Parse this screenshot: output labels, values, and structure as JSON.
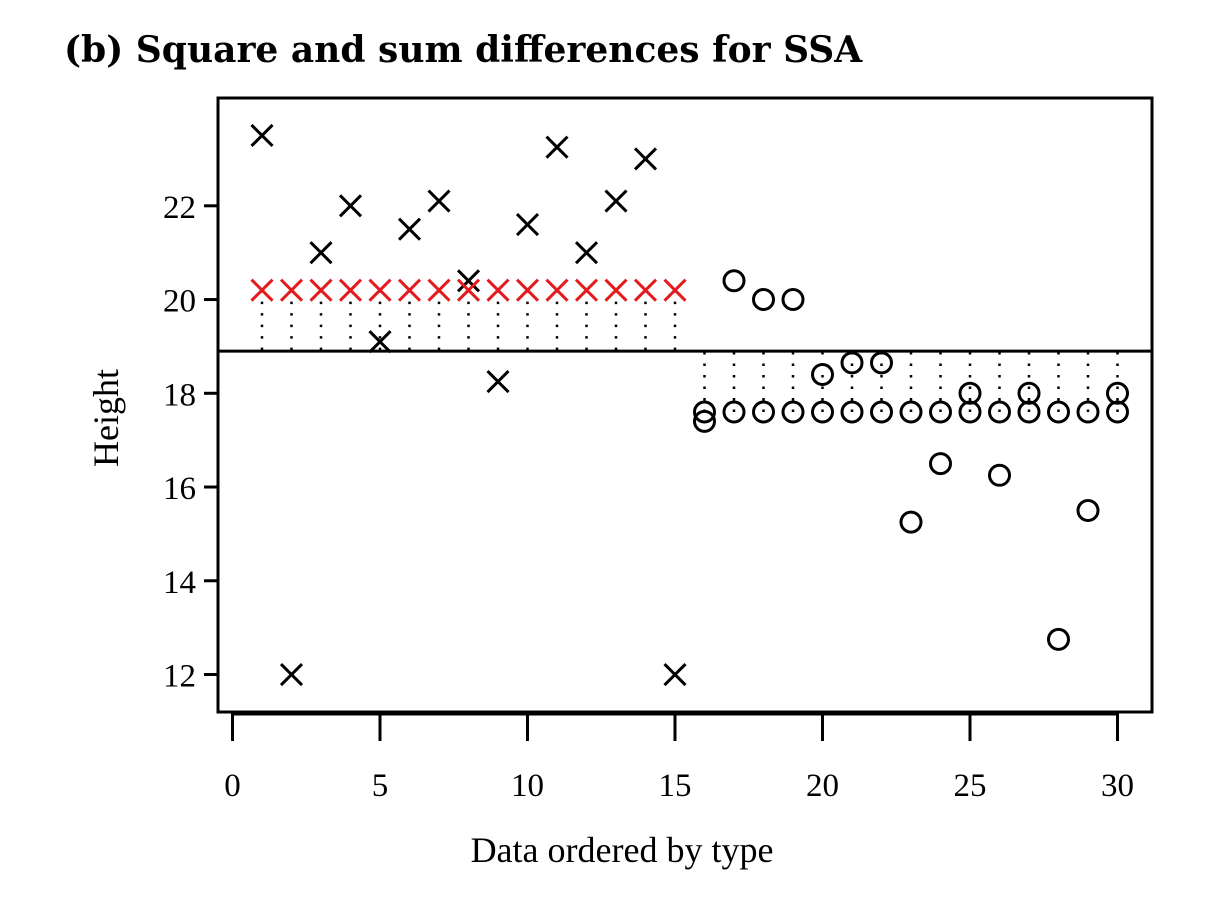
{
  "chart_data": {
    "type": "scatter",
    "title": "(b) Square and sum differences for SSA",
    "xlabel": "Data ordered by type",
    "ylabel": "Height",
    "xlim": [
      0,
      31
    ],
    "ylim": [
      11.2,
      24.3
    ],
    "x_ticks": [
      0,
      5,
      10,
      15,
      20,
      25,
      30
    ],
    "y_ticks": [
      12,
      14,
      16,
      18,
      20,
      22
    ],
    "grand_mean": 18.9,
    "series": [
      {
        "marker": "x",
        "color": "#000000",
        "x": [
          1,
          2,
          3,
          4,
          5,
          6,
          7,
          8,
          9,
          10,
          11,
          12,
          13,
          14,
          15
        ],
        "y": [
          23.5,
          12.0,
          21.0,
          22.0,
          19.1,
          21.5,
          22.1,
          20.4,
          18.25,
          21.6,
          23.25,
          21.0,
          22.1,
          23.0,
          12.0
        ]
      },
      {
        "marker": "x",
        "color": "#e41a1c",
        "x": [
          1,
          2,
          3,
          4,
          5,
          6,
          7,
          8,
          9,
          10,
          11,
          12,
          13,
          14,
          15
        ],
        "y": [
          20.2,
          20.2,
          20.2,
          20.2,
          20.2,
          20.2,
          20.2,
          20.2,
          20.2,
          20.2,
          20.2,
          20.2,
          20.2,
          20.2,
          20.2
        ]
      },
      {
        "marker": "circle",
        "color": "#000000",
        "x": [
          16,
          17,
          18,
          19,
          20,
          21,
          22,
          23,
          24,
          25,
          26,
          27,
          28,
          29,
          30
        ],
        "y": [
          17.4,
          20.4,
          20.0,
          20.0,
          18.4,
          18.65,
          18.65,
          15.25,
          16.5,
          18.0,
          16.25,
          18.0,
          12.75,
          15.5,
          18.0
        ]
      },
      {
        "marker": "circle",
        "color": "#000000",
        "x": [
          16,
          17,
          18,
          19,
          20,
          21,
          22,
          23,
          24,
          25,
          26,
          27,
          28,
          29,
          30
        ],
        "y": [
          17.6,
          17.6,
          17.6,
          17.6,
          17.6,
          17.6,
          17.6,
          17.6,
          17.6,
          17.6,
          17.6,
          17.6,
          17.6,
          17.6,
          17.6
        ]
      }
    ]
  }
}
